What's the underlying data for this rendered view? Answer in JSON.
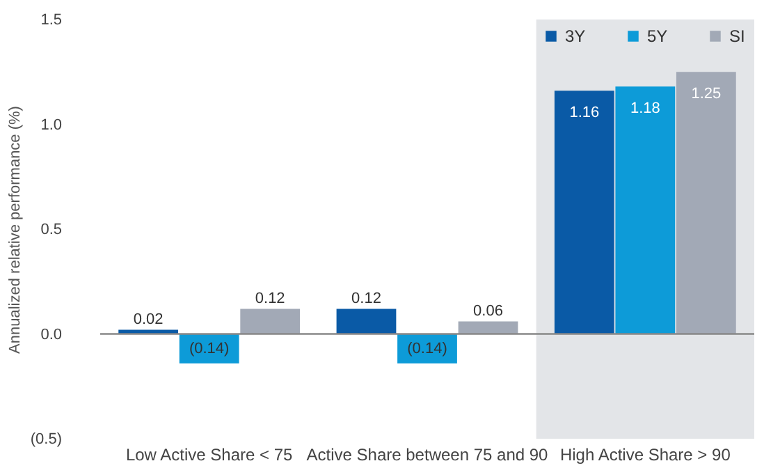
{
  "chart_data": {
    "type": "bar",
    "ylabel": "Annualized relative performance (%)",
    "categories": [
      "Low Active Share < 75",
      "Active Share between 75 and 90",
      "High Active Share > 90"
    ],
    "series": [
      {
        "name": "3Y",
        "color": "#0a5aa6",
        "values": [
          0.02,
          0.12,
          1.16
        ],
        "value_labels": [
          "0.02",
          "0.12",
          "1.16"
        ]
      },
      {
        "name": "5Y",
        "color": "#0d9bd8",
        "values": [
          -0.14,
          -0.14,
          1.18
        ],
        "value_labels": [
          "(0.14)",
          "(0.14)",
          "1.18"
        ]
      },
      {
        "name": "SI",
        "color": "#a2a9b6",
        "values": [
          0.12,
          0.06,
          1.25
        ],
        "value_labels": [
          "0.12",
          "0.06",
          "1.25"
        ]
      }
    ],
    "ylim": [
      -0.5,
      1.5
    ],
    "yticks": [
      {
        "value": -0.5,
        "label": "(0.5)"
      },
      {
        "value": 0,
        "label": "0.0"
      },
      {
        "value": 0.5,
        "label": "0.5"
      },
      {
        "value": 1,
        "label": "1.0"
      },
      {
        "value": 1.5,
        "label": "1.5"
      }
    ],
    "ref_lines": [
      {
        "axis": "y",
        "value": 0,
        "color": "#888888"
      }
    ],
    "bands": [
      {
        "axis": "x",
        "from": "High Active Share > 90",
        "to": "High Active Share > 90",
        "color": "#e3e5e8"
      }
    ],
    "legend": "top right",
    "grid": false
  }
}
